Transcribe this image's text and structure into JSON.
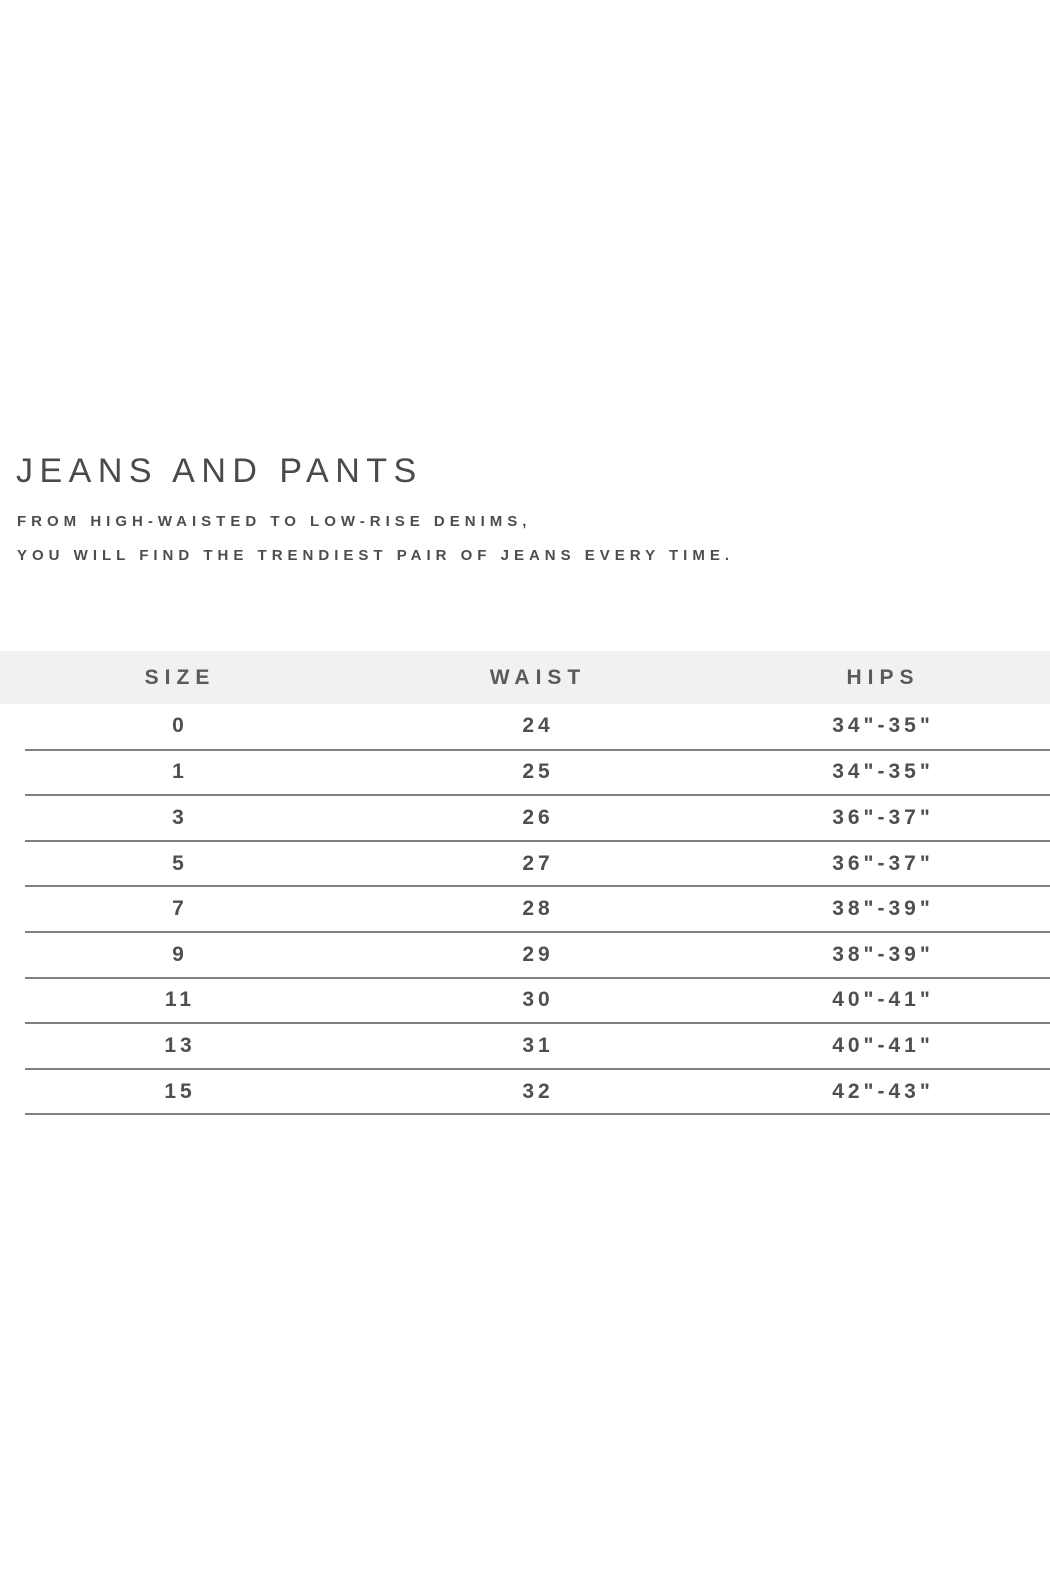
{
  "header": {
    "title": "JEANS AND PANTS",
    "subtitle_line1": "FROM HIGH-WAISTED TO LOW-RISE DENIMS,",
    "subtitle_line2": "YOU WILL FIND THE TRENDIEST PAIR OF JEANS EVERY TIME."
  },
  "table": {
    "columns": [
      "SIZE",
      "WAIST",
      "HIPS"
    ],
    "rows": [
      {
        "size": "0",
        "waist": "24",
        "hips": "34\"-35\""
      },
      {
        "size": "1",
        "waist": "25",
        "hips": "34\"-35\""
      },
      {
        "size": "3",
        "waist": "26",
        "hips": "36\"-37\""
      },
      {
        "size": "5",
        "waist": "27",
        "hips": "36\"-37\""
      },
      {
        "size": "7",
        "waist": "28",
        "hips": "38\"-39\""
      },
      {
        "size": "9",
        "waist": "29",
        "hips": "38\"-39\""
      },
      {
        "size": "11",
        "waist": "30",
        "hips": "40\"-41\""
      },
      {
        "size": "13",
        "waist": "31",
        "hips": "40\"-41\""
      },
      {
        "size": "15",
        "waist": "32",
        "hips": "42\"-43\""
      }
    ]
  },
  "colors": {
    "header_band": "#f1f1f1",
    "row_line": "#808080",
    "text": "#4f4f4f",
    "title": "#4a4a4a",
    "background": "#ffffff"
  }
}
